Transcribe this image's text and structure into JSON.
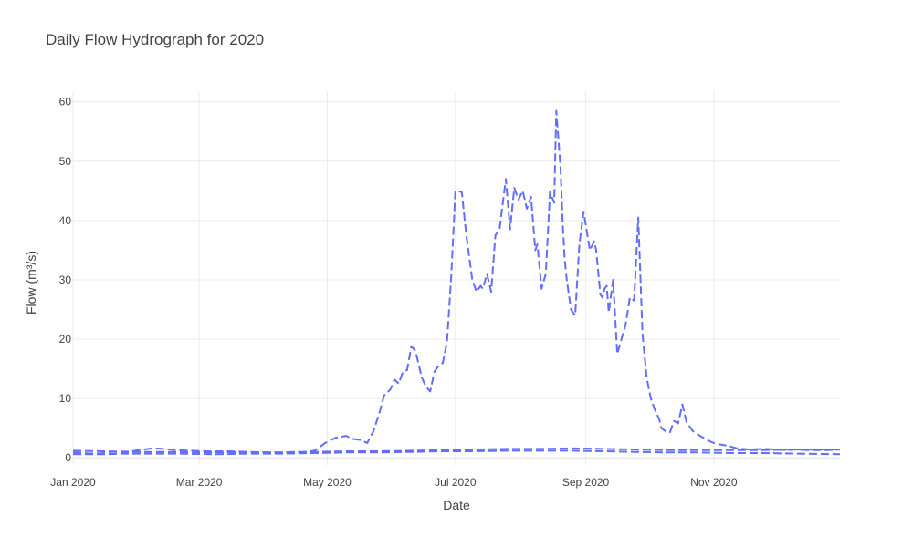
{
  "chart_data": {
    "type": "line",
    "title": "Daily Flow Hydrograph for 2020",
    "xlabel": "Date",
    "ylabel": "Flow (m³/s)",
    "x_type": "date",
    "xlim": [
      "2020-01-01",
      "2020-12-31"
    ],
    "ylim": [
      -1.2,
      61.8
    ],
    "x_ticks": [
      "2020-01-01",
      "2020-03-01",
      "2020-05-01",
      "2020-07-01",
      "2020-09-01",
      "2020-11-01"
    ],
    "x_tick_labels": [
      "Jan 2020",
      "Mar 2020",
      "May 2020",
      "Jul 2020",
      "Sep 2020",
      "Nov 2020"
    ],
    "y_ticks": [
      0,
      10,
      20,
      30,
      40,
      50,
      60
    ],
    "y_tick_labels": [
      "0",
      "10",
      "20",
      "30",
      "40",
      "50",
      "60"
    ],
    "grid": true,
    "legend": "none",
    "line_color": "#636efa",
    "line_style": "dash",
    "series": [
      {
        "x": [
          "2020-01-01",
          "2020-01-15",
          "2020-01-25",
          "2020-02-05",
          "2020-02-20",
          "2020-03-10",
          "2020-03-25",
          "2020-04-10",
          "2020-04-25",
          "2020-05-10",
          "2020-05-25",
          "2020-06-10",
          "2020-06-25",
          "2020-07-10",
          "2020-07-25",
          "2020-08-10",
          "2020-08-25",
          "2020-09-10",
          "2020-09-25",
          "2020-10-10",
          "2020-10-25",
          "2020-11-10",
          "2020-11-25",
          "2020-12-10",
          "2020-12-31"
        ],
        "y": [
          0.6,
          0.6,
          0.7,
          0.7,
          0.7,
          0.6,
          0.7,
          0.7,
          0.8,
          0.9,
          0.9,
          1.0,
          1.1,
          1.1,
          1.2,
          1.2,
          1.2,
          1.1,
          1.0,
          0.9,
          0.9,
          0.8,
          0.8,
          0.7,
          0.6
        ]
      },
      {
        "x": [
          "2020-01-01",
          "2020-01-15",
          "2020-02-05",
          "2020-02-20",
          "2020-03-10",
          "2020-03-25",
          "2020-04-10",
          "2020-04-25",
          "2020-05-10",
          "2020-05-25",
          "2020-06-10",
          "2020-06-25",
          "2020-07-10",
          "2020-07-25",
          "2020-08-10",
          "2020-08-25",
          "2020-09-10",
          "2020-09-25",
          "2020-10-10",
          "2020-10-25",
          "2020-11-10",
          "2020-11-25",
          "2020-12-10",
          "2020-12-31"
        ],
        "y": [
          1.2,
          1.1,
          1.0,
          1.0,
          0.9,
          0.9,
          0.9,
          1.0,
          1.1,
          1.1,
          1.2,
          1.3,
          1.4,
          1.5,
          1.5,
          1.6,
          1.5,
          1.4,
          1.3,
          1.3,
          1.3,
          1.3,
          1.4,
          1.4
        ]
      },
      {
        "x": [
          "2020-01-01",
          "2020-01-06",
          "2020-01-11",
          "2020-01-16",
          "2020-01-21",
          "2020-01-26",
          "2020-02-01",
          "2020-02-08",
          "2020-02-13",
          "2020-02-19",
          "2020-02-26",
          "2020-03-05",
          "2020-03-15",
          "2020-03-25",
          "2020-04-05",
          "2020-04-10",
          "2020-04-15",
          "2020-04-20",
          "2020-04-25",
          "2020-04-30",
          "2020-05-05",
          "2020-05-10",
          "2020-05-13",
          "2020-05-17",
          "2020-05-20",
          "2020-05-23",
          "2020-05-26",
          "2020-05-28",
          "2020-05-31",
          "2020-06-02",
          "2020-06-04",
          "2020-06-06",
          "2020-06-08",
          "2020-06-10",
          "2020-06-12",
          "2020-06-15",
          "2020-06-17",
          "2020-06-19",
          "2020-06-21",
          "2020-06-23",
          "2020-06-25",
          "2020-06-27",
          "2020-06-28",
          "2020-06-29",
          "2020-07-01",
          "2020-07-04",
          "2020-07-06",
          "2020-07-09",
          "2020-07-11",
          "2020-07-13",
          "2020-07-14",
          "2020-07-16",
          "2020-07-18",
          "2020-07-20",
          "2020-07-22",
          "2020-07-23",
          "2020-07-25",
          "2020-07-27",
          "2020-07-29",
          "2020-07-31",
          "2020-08-02",
          "2020-08-04",
          "2020-08-06",
          "2020-08-08",
          "2020-08-09",
          "2020-08-11",
          "2020-08-13",
          "2020-08-15",
          "2020-08-17",
          "2020-08-18",
          "2020-08-20",
          "2020-08-21",
          "2020-08-22",
          "2020-08-23",
          "2020-08-25",
          "2020-08-27",
          "2020-08-29",
          "2020-08-31",
          "2020-09-03",
          "2020-09-05",
          "2020-09-06",
          "2020-09-08",
          "2020-09-09",
          "2020-09-10",
          "2020-09-11",
          "2020-09-12",
          "2020-09-14",
          "2020-09-16",
          "2020-09-18",
          "2020-09-20",
          "2020-09-22",
          "2020-09-24",
          "2020-09-26",
          "2020-09-28",
          "2020-09-30",
          "2020-10-02",
          "2020-10-04",
          "2020-10-06",
          "2020-10-07",
          "2020-10-09",
          "2020-10-11",
          "2020-10-13",
          "2020-10-15",
          "2020-10-17",
          "2020-10-19",
          "2020-10-22",
          "2020-10-25",
          "2020-10-28",
          "2020-10-30",
          "2020-11-01",
          "2020-11-03",
          "2020-11-05",
          "2020-11-08",
          "2020-11-12",
          "2020-11-18",
          "2020-11-25",
          "2020-12-01",
          "2020-12-06",
          "2020-12-10",
          "2020-12-15",
          "2020-12-20",
          "2020-12-25",
          "2020-12-31"
        ],
        "y": [
          0.9,
          0.8,
          0.7,
          0.8,
          0.7,
          0.9,
          1.3,
          1.6,
          1.5,
          1.3,
          1.2,
          1.1,
          1.1,
          1.0,
          0.9,
          0.9,
          1.0,
          1.0,
          1.2,
          2.5,
          3.4,
          3.7,
          3.2,
          3.0,
          2.5,
          4.5,
          7.8,
          10.5,
          11.5,
          13.2,
          12.5,
          14.5,
          14.8,
          18.8,
          18.0,
          13.5,
          12.0,
          11.2,
          14.5,
          15.5,
          16.0,
          19.5,
          25.0,
          30.5,
          45.0,
          44.8,
          38.0,
          30.0,
          28.0,
          29.0,
          28.5,
          31.0,
          28.0,
          37.5,
          38.5,
          41.5,
          47.0,
          38.5,
          45.5,
          43.5,
          45.0,
          42.0,
          44.0,
          35.0,
          36.0,
          28.5,
          31.0,
          44.8,
          43.0,
          58.5,
          49.0,
          40.0,
          33.5,
          30.0,
          25.0,
          24.0,
          36.0,
          41.5,
          35.0,
          36.5,
          35.0,
          27.5,
          27.0,
          28.5,
          29.0,
          24.5,
          30.0,
          17.5,
          20.0,
          22.5,
          27.0,
          26.5,
          40.5,
          21.0,
          13.5,
          10.0,
          8.0,
          6.5,
          5.0,
          4.5,
          4.2,
          6.2,
          5.8,
          9.0,
          6.0,
          4.5,
          3.8,
          3.2,
          2.8,
          2.5,
          2.3,
          2.2,
          2.0,
          1.6,
          1.4,
          1.5,
          1.4,
          1.3,
          1.4,
          1.3,
          1.3,
          1.3,
          1.4
        ]
      }
    ]
  }
}
